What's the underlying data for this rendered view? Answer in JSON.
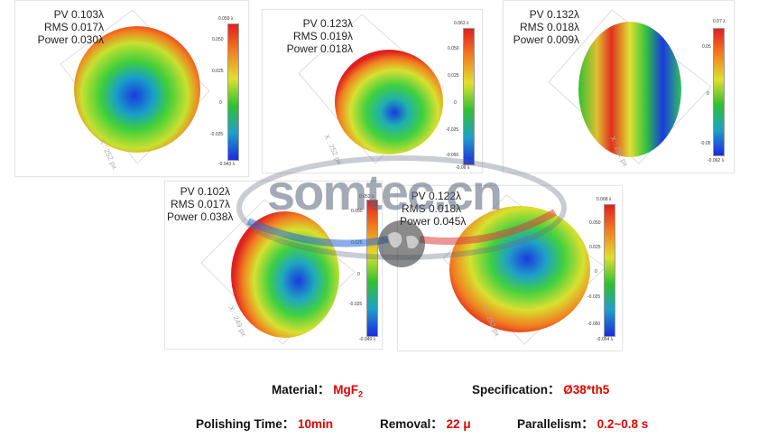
{
  "panels": [
    {
      "pv": "PV 0.103λ",
      "rms": "RMS 0.017λ",
      "power": "Power 0.030λ",
      "cb_max": "0.059 λ",
      "cb_min": "-0.043 λ",
      "ticks": [
        "0.050",
        "0.025",
        "0",
        "-0.025"
      ],
      "axis": "X : 252 px"
    },
    {
      "pv": "PV 0.123λ",
      "rms": "RMS 0.019λ",
      "power": "Power 0.018λ",
      "cb_max": "0.063 λ",
      "cb_min": "-0.06 λ",
      "ticks": [
        "0.050",
        "0.025",
        "0",
        "-0.025",
        "-0.050"
      ],
      "axis": "X : 252 px"
    },
    {
      "pv": "PV 0.132λ",
      "rms": "RMS 0.018λ",
      "power": "Power 0.009λ",
      "cb_max": "0.07 λ",
      "cb_min": "-0.062 λ",
      "ticks": [
        "0.05",
        "0",
        "-0.05"
      ],
      "axis": "X : 252 px"
    },
    {
      "pv": "PV 0.102λ",
      "rms": "RMS 0.017λ",
      "power": "Power 0.038λ",
      "cb_max": "0.053 λ",
      "cb_min": "-0.049 λ",
      "ticks": [
        "0.050",
        "0.025",
        "0",
        "-0.025"
      ],
      "axis": "X : 249 px"
    },
    {
      "pv": "PV 0.122λ",
      "rms": "RMS 0.018λ",
      "power": "Power 0.045λ",
      "cb_max": "0.068 λ",
      "cb_min": "-0.054 λ",
      "ticks": [
        "0.050",
        "0.025",
        "0",
        "-0.025",
        "-0.050"
      ],
      "axis": "X : 252 px"
    }
  ],
  "watermark": "somtec.cn",
  "info": {
    "material_label": "Material：",
    "material_value": "MgF",
    "material_sub": "2",
    "spec_label": "Specification：",
    "spec_value": "Ø38*th5",
    "polish_label": "Polishing Time：",
    "polish_value": "10min",
    "removal_label": "Removal：",
    "removal_value": "22 μ",
    "parallel_label": "Parallelism：",
    "parallel_value": "0.2~0.8 s"
  },
  "colors": {
    "accent": "#e00000",
    "watermark_red": "#d84040",
    "watermark_blue": "#2a6ad8"
  }
}
